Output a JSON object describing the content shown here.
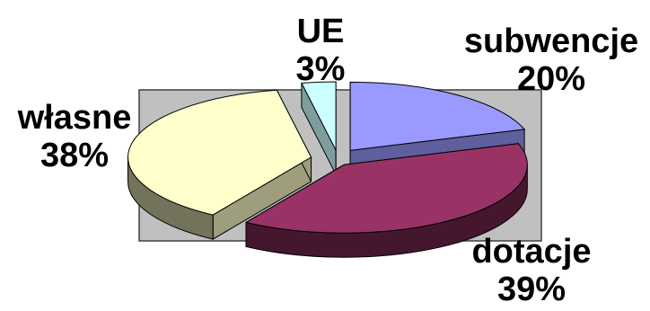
{
  "chart_data": {
    "type": "pie",
    "style": "3d-exploded",
    "plot_area_fill": "#c0c0c0",
    "series": [
      {
        "categories": [
          "subwencje",
          "dotacje",
          "własne",
          "UE"
        ],
        "values": [
          20,
          39,
          38,
          3
        ],
        "value_labels": [
          "20%",
          "39%",
          "38%",
          "3%"
        ],
        "colors": [
          "#9999ff",
          "#993366",
          "#ffffcc",
          "#ccffff"
        ]
      }
    ]
  }
}
